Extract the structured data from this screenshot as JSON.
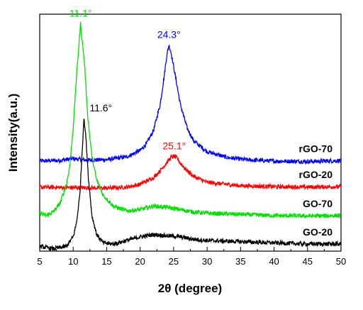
{
  "chart_data": {
    "type": "line",
    "title": "",
    "xlabel": "2θ (degree)",
    "ylabel": "Intensity(a.u.)",
    "xlim": [
      5,
      50
    ],
    "x_ticks": [
      "5",
      "10",
      "15",
      "20",
      "25",
      "30",
      "35",
      "40",
      "45",
      "50"
    ],
    "y_ticks_shown": false,
    "grid": false,
    "legend": "none",
    "series": [
      {
        "name": "rGO-70",
        "color": "#0000ff",
        "x": [
          5,
          8,
          10,
          12,
          15,
          18,
          20,
          21,
          22,
          23,
          23.5,
          24,
          24.3,
          24.6,
          25,
          25.5,
          26,
          27,
          28,
          30,
          33,
          36,
          40,
          45,
          50
        ],
        "y": [
          0.38,
          0.383,
          0.39,
          0.384,
          0.386,
          0.398,
          0.425,
          0.455,
          0.51,
          0.62,
          0.72,
          0.83,
          0.87,
          0.84,
          0.78,
          0.7,
          0.62,
          0.52,
          0.465,
          0.42,
          0.395,
          0.385,
          0.38,
          0.378,
          0.382
        ]
      },
      {
        "name": "rGO-20",
        "color": "#ff0000",
        "x": [
          5,
          10,
          15,
          18,
          20,
          22,
          23,
          24,
          24.6,
          25.1,
          25.6,
          26,
          27,
          28,
          30,
          35,
          40,
          45,
          50
        ],
        "y": [
          0.27,
          0.268,
          0.266,
          0.27,
          0.282,
          0.31,
          0.34,
          0.375,
          0.395,
          0.4,
          0.39,
          0.372,
          0.34,
          0.315,
          0.29,
          0.276,
          0.272,
          0.27,
          0.272
        ]
      },
      {
        "name": "GO-70",
        "color": "#00dd00",
        "x": [
          5,
          6,
          7,
          8,
          9,
          9.5,
          10,
          10.5,
          11.1,
          11.7,
          12.2,
          12.8,
          13.5,
          14.5,
          16,
          18,
          20,
          22,
          24,
          26,
          28,
          30,
          35,
          40,
          45,
          50
        ],
        "y": [
          0.16,
          0.15,
          0.165,
          0.2,
          0.28,
          0.36,
          0.52,
          0.74,
          0.96,
          0.79,
          0.56,
          0.4,
          0.3,
          0.235,
          0.19,
          0.17,
          0.175,
          0.19,
          0.185,
          0.175,
          0.165,
          0.16,
          0.155,
          0.15,
          0.148,
          0.15
        ]
      },
      {
        "name": "GO-20",
        "color": "#000000",
        "x": [
          5,
          7,
          9,
          10,
          10.5,
          11,
          11.3,
          11.6,
          11.9,
          12.3,
          12.8,
          13.5,
          14.5,
          16,
          18,
          20,
          22,
          24,
          26,
          28,
          30,
          35,
          40,
          45,
          50
        ],
        "y": [
          0.02,
          0.01,
          0.02,
          0.06,
          0.12,
          0.24,
          0.4,
          0.56,
          0.48,
          0.3,
          0.15,
          0.07,
          0.035,
          0.03,
          0.045,
          0.06,
          0.07,
          0.065,
          0.06,
          0.05,
          0.045,
          0.04,
          0.035,
          0.03,
          0.03
        ]
      }
    ],
    "series_labels": [
      "rGO-70",
      "rGO-20",
      "GO-70",
      "GO-20"
    ],
    "peak_annotations": [
      {
        "text": "11.1°",
        "x": 11.1,
        "y": 0.96,
        "color": "#00dd00"
      },
      {
        "text": "24.3°",
        "x": 24.3,
        "y": 0.87,
        "color": "#0000ff"
      },
      {
        "text": "11.6°",
        "x": 11.6,
        "y": 0.56,
        "color": "#000000"
      },
      {
        "text": "25.1°",
        "x": 25.1,
        "y": 0.4,
        "color": "#ff0000"
      }
    ]
  }
}
